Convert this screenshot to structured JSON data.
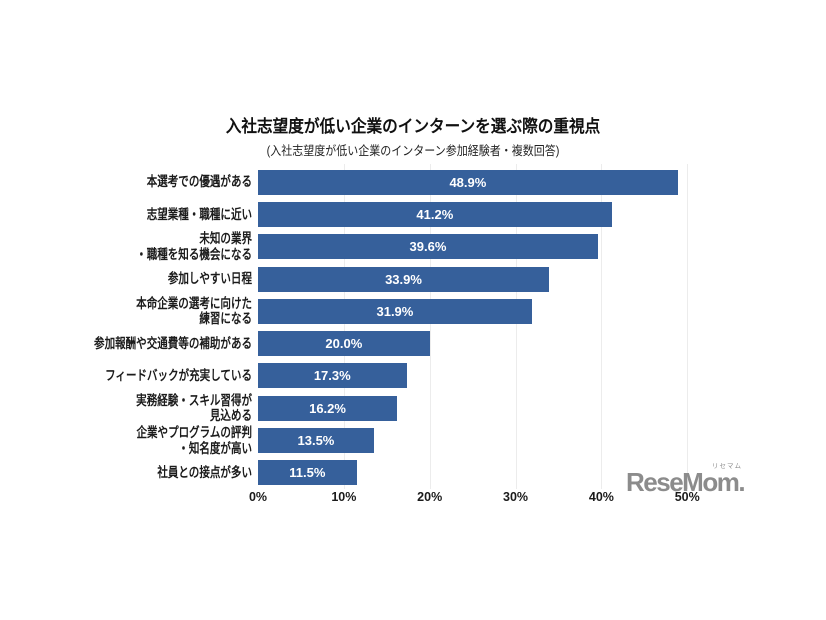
{
  "chart_data": {
    "type": "bar",
    "orientation": "horizontal",
    "title": "入社志望度が低い企業のインターンを選ぶ際の重視点",
    "subtitle": "(入社志望度が低い企業のインターン参加経験者・複数回答)",
    "categories": [
      [
        "本選考での優遇がある"
      ],
      [
        "志望業種・職種に近い"
      ],
      [
        "未知の業界",
        "・職種を知る機会になる"
      ],
      [
        "参加しやすい日程"
      ],
      [
        "本命企業の選考に向けた",
        "練習になる"
      ],
      [
        "参加報酬や交通費等の補助がある"
      ],
      [
        "フィードバックが充実している"
      ],
      [
        "実務経験・スキル習得が",
        "見込める"
      ],
      [
        "企業やプログラムの評判",
        "・知名度が高い"
      ],
      [
        "社員との接点が多い"
      ]
    ],
    "values": [
      48.9,
      41.2,
      39.6,
      33.9,
      31.9,
      20.0,
      17.3,
      16.2,
      13.5,
      11.5
    ],
    "value_labels": [
      "48.9%",
      "41.2%",
      "39.6%",
      "33.9%",
      "31.9%",
      "20.0%",
      "17.3%",
      "16.2%",
      "13.5%",
      "11.5%"
    ],
    "xlabel": "",
    "ylabel": "",
    "xlim": [
      0,
      53
    ],
    "x_ticks": [
      "0%",
      "10%",
      "20%",
      "30%",
      "40%",
      "50%"
    ],
    "x_tick_values": [
      0,
      10,
      20,
      30,
      40,
      50
    ],
    "grid": true,
    "legend": false,
    "bar_color": "#36609B",
    "value_label_color": "#ffffff",
    "gridline_color": "#ececec"
  },
  "watermark": {
    "text": "ReseMom.",
    "ruby": "リセマム",
    "color": "#8c8c8c"
  }
}
